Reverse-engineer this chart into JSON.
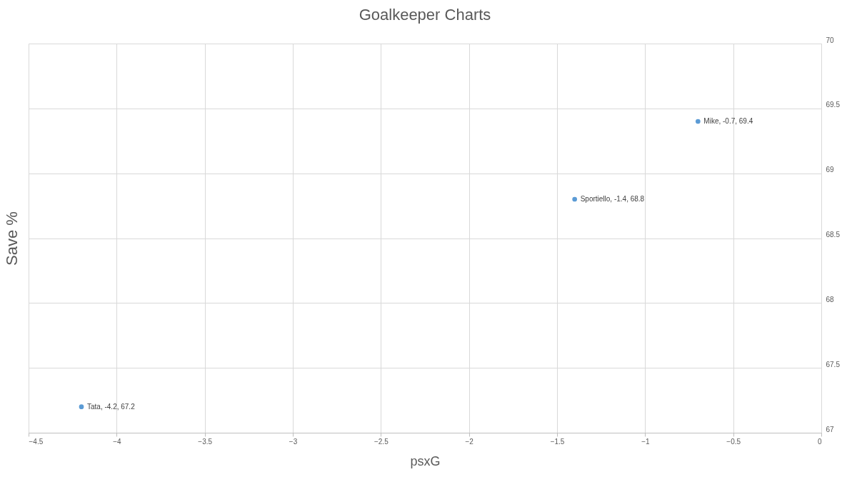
{
  "chart_data": {
    "type": "scatter",
    "title": "Goalkeeper Charts",
    "xlabel": "psxG",
    "ylabel": "Save %",
    "x": [
      -0.7,
      -1.4,
      -4.2
    ],
    "series": [
      {
        "color": "#5b9bd5",
        "values": [
          69.4,
          68.8,
          67.2
        ],
        "value_labels": [
          "Mike, -0.7, 69.4",
          "Sportiello, -1.4, 68.8",
          "Tata, -4.2, 67.2"
        ]
      }
    ],
    "xlim": [
      -4.5,
      0
    ],
    "xticks": [
      -4.5,
      -4,
      -3.5,
      -3,
      -2.5,
      -2,
      -1.5,
      -1,
      -0.5,
      0
    ],
    "ylim": [
      67,
      70
    ],
    "yticks": [
      67,
      67.5,
      68,
      68.5,
      69,
      69.5,
      70
    ],
    "grid": true,
    "marker": "circle"
  }
}
